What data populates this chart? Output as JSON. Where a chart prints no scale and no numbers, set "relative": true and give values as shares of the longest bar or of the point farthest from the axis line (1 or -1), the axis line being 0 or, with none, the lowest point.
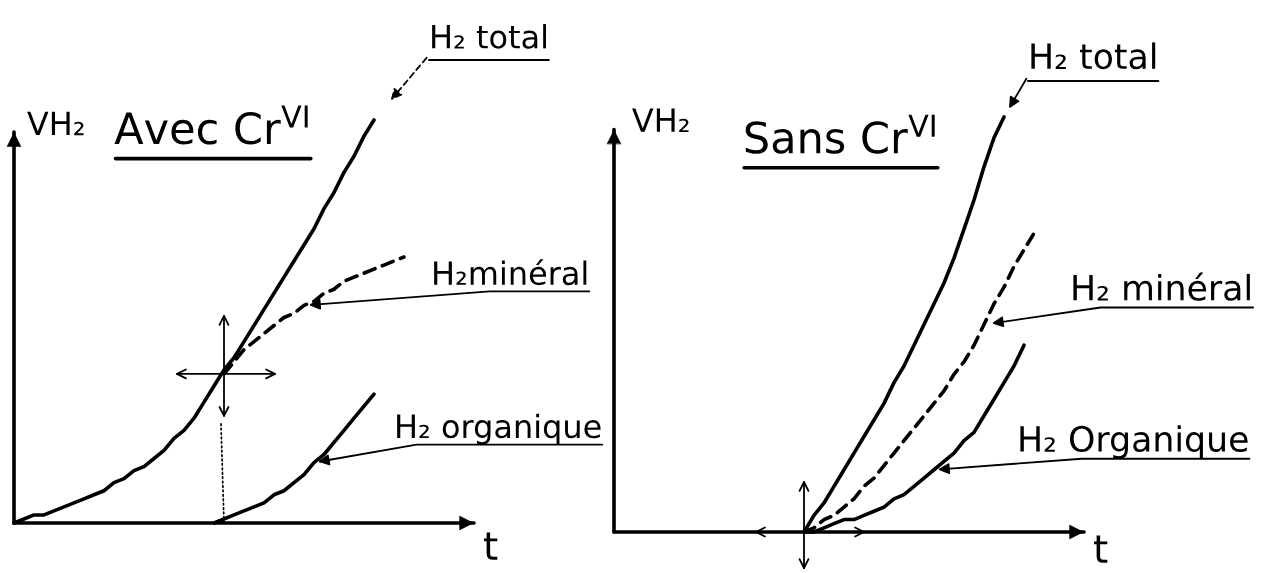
{
  "chart_data": [
    {
      "type": "line",
      "title": "Avec Cr$^{VI}$",
      "xlabel": "t",
      "ylabel": "VH₂",
      "relative": true,
      "categories": [
        null,
        null,
        null,
        null,
        null,
        null,
        null,
        null,
        null,
        null,
        null,
        null,
        null,
        null,
        null,
        null,
        null,
        null,
        null,
        null,
        null,
        null,
        null,
        null,
        null,
        null,
        null,
        null,
        null,
        null,
        null,
        null,
        null,
        null,
        null,
        null,
        null,
        null,
        null,
        null,
        null,
        null,
        null,
        null,
        null,
        null,
        null
      ],
      "series": [
        {
          "name": "H₂ total",
          "color": "#000000",
          "line_style": "solid",
          "values": [
            0,
            0.01,
            0.02,
            0.02,
            0.03,
            0.04,
            0.05,
            0.06,
            0.07,
            0.08,
            0.1,
            0.11,
            0.13,
            0.14,
            0.16,
            0.18,
            0.21,
            0.23,
            0.26,
            0.3,
            0.34,
            0.38,
            0.41,
            0.45,
            0.49,
            0.53,
            0.57,
            0.61,
            0.65,
            0.69,
            0.73,
            0.78,
            0.82,
            0.87,
            0.91,
            0.96,
            1,
            null,
            null,
            null,
            null,
            null,
            null,
            null,
            null,
            null,
            null
          ]
        },
        {
          "name": "H₂minéral",
          "color": "#000000",
          "line_style": "dashed",
          "values": [
            null,
            null,
            null,
            null,
            null,
            null,
            null,
            null,
            null,
            null,
            null,
            null,
            null,
            null,
            null,
            null,
            null,
            null,
            null,
            null,
            null,
            0.37,
            0.4,
            0.43,
            0.45,
            0.47,
            0.49,
            0.51,
            0.52,
            0.54,
            0.55,
            0.57,
            0.58,
            0.6,
            0.61,
            0.62,
            0.63,
            0.64,
            0.65,
            0.66,
            null,
            null,
            null,
            null,
            null,
            null,
            null
          ]
        },
        {
          "name": "H₂ organique",
          "color": "#000000",
          "line_style": "solid",
          "values": [
            null,
            null,
            null,
            null,
            null,
            null,
            null,
            null,
            null,
            null,
            null,
            null,
            null,
            null,
            null,
            null,
            null,
            null,
            null,
            null,
            0,
            0.01,
            0.02,
            0.03,
            0.04,
            0.05,
            0.07,
            0.08,
            0.1,
            0.12,
            0.15,
            0.17,
            0.2,
            0.23,
            0.26,
            0.29,
            0.32,
            null,
            null,
            null,
            null,
            null,
            null,
            null,
            null,
            null,
            null
          ]
        }
      ]
    },
    {
      "type": "line",
      "title": "Sans Cr$^{VI}$",
      "xlabel": "t",
      "ylabel": "VH₂",
      "relative": true,
      "categories": [
        null,
        null,
        null,
        null,
        null,
        null,
        null,
        null,
        null,
        null,
        null,
        null,
        null,
        null,
        null,
        null,
        null,
        null,
        null,
        null,
        null,
        null,
        null,
        null,
        null,
        null,
        null,
        null,
        null,
        null,
        null,
        null,
        null,
        null,
        null,
        null,
        null,
        null,
        null,
        null,
        null,
        null,
        null,
        null,
        null,
        null,
        null,
        null
      ],
      "series": [
        {
          "name": "H₂ total",
          "color": "#000000",
          "line_style": "solid",
          "values": [
            null,
            null,
            null,
            null,
            null,
            null,
            null,
            null,
            null,
            null,
            null,
            null,
            null,
            null,
            null,
            null,
            null,
            null,
            null,
            0,
            0.04,
            0.07,
            0.11,
            0.15,
            0.19,
            0.23,
            0.27,
            0.31,
            0.36,
            0.4,
            0.45,
            0.5,
            0.55,
            0.6,
            0.66,
            0.73,
            0.8,
            0.88,
            0.95,
            1,
            null,
            null,
            null,
            null,
            null,
            null,
            null,
            null
          ]
        },
        {
          "name": "H₂ minéral",
          "color": "#000000",
          "line_style": "dashed",
          "values": [
            null,
            null,
            null,
            null,
            null,
            null,
            null,
            null,
            null,
            null,
            null,
            null,
            null,
            null,
            null,
            null,
            null,
            null,
            null,
            0,
            0.01,
            0.03,
            0.04,
            0.06,
            0.08,
            0.11,
            0.13,
            0.16,
            0.19,
            0.22,
            0.25,
            0.28,
            0.31,
            0.34,
            0.38,
            0.41,
            0.45,
            0.5,
            0.55,
            0.59,
            0.64,
            0.68,
            0.72,
            null,
            null,
            null,
            null,
            null
          ]
        },
        {
          "name": "H₂ Organique",
          "color": "#000000",
          "line_style": "solid",
          "values": [
            null,
            null,
            null,
            null,
            null,
            null,
            null,
            null,
            null,
            null,
            null,
            null,
            null,
            null,
            null,
            null,
            null,
            null,
            null,
            0,
            0,
            0.01,
            0.02,
            0.03,
            0.03,
            0.04,
            0.05,
            0.06,
            0.08,
            0.09,
            0.11,
            0.13,
            0.15,
            0.17,
            0.19,
            0.22,
            0.24,
            0.28,
            0.32,
            0.36,
            0.4,
            0.45,
            null,
            null,
            null,
            null,
            null,
            null
          ]
        }
      ]
    }
  ]
}
